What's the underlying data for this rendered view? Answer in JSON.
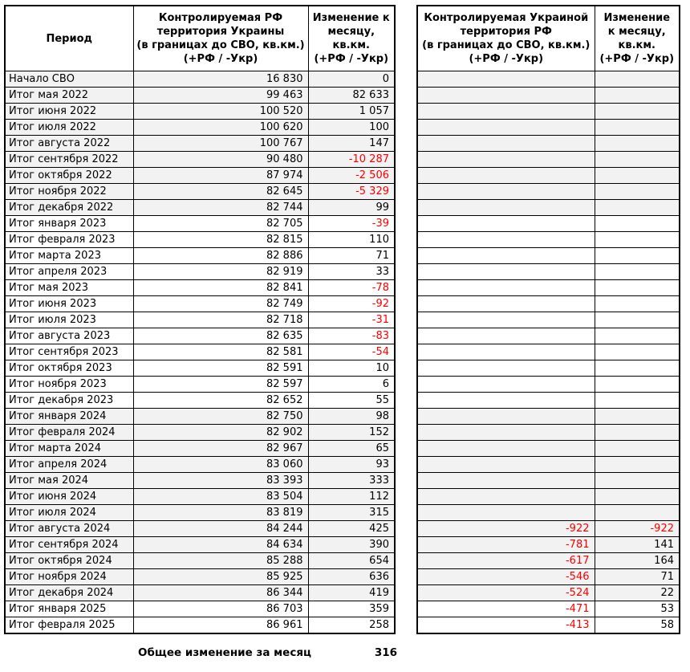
{
  "colors": {
    "negative": "#ff0000",
    "shaded_row": "#f2f2f2",
    "border": "#000000",
    "text": "#000000"
  },
  "left_table": {
    "header_period": "Период",
    "header_area": "Контролируемая РФ\nтерритория Украины\n(в границах до СВО, кв.км.)\n(+РФ / -Укр)",
    "header_change": "Изменение к\nмесяцу,\nкв.км.\n(+РФ / -Укр)"
  },
  "right_table": {
    "header_area": "Контролируемая Украиной\nтерритория РФ\n(в границах до СВО, кв.км.)\n(+РФ / -Укр)",
    "header_change": "Изменение\nк месяцу,\nкв.км.\n(+РФ / -Укр)"
  },
  "rows": [
    {
      "period": "Начало СВО",
      "rf_area": "16 830",
      "rf_change": "0",
      "ua_area": "",
      "ua_change": "",
      "shaded": true
    },
    {
      "period": "Итог мая 2022",
      "rf_area": "99 463",
      "rf_change": "82 633",
      "ua_area": "",
      "ua_change": "",
      "shaded": true
    },
    {
      "period": "Итог июня 2022",
      "rf_area": "100 520",
      "rf_change": "1 057",
      "ua_area": "",
      "ua_change": "",
      "shaded": true
    },
    {
      "period": "Итог июля 2022",
      "rf_area": "100 620",
      "rf_change": "100",
      "ua_area": "",
      "ua_change": "",
      "shaded": true
    },
    {
      "period": "Итог августа 2022",
      "rf_area": "100 767",
      "rf_change": "147",
      "ua_area": "",
      "ua_change": "",
      "shaded": true
    },
    {
      "period": "Итог сентября 2022",
      "rf_area": "90 480",
      "rf_change": "-10 287",
      "ua_area": "",
      "ua_change": "",
      "shaded": true
    },
    {
      "period": "Итог октября 2022",
      "rf_area": "87 974",
      "rf_change": "-2 506",
      "ua_area": "",
      "ua_change": "",
      "shaded": true
    },
    {
      "period": "Итог ноября 2022",
      "rf_area": "82 645",
      "rf_change": "-5 329",
      "ua_area": "",
      "ua_change": "",
      "shaded": true
    },
    {
      "period": "Итог декабря 2022",
      "rf_area": "82 744",
      "rf_change": "99",
      "ua_area": "",
      "ua_change": "",
      "shaded": true
    },
    {
      "period": "Итог января 2023",
      "rf_area": "82 705",
      "rf_change": "-39",
      "ua_area": "",
      "ua_change": "",
      "shaded": false
    },
    {
      "period": "Итог февраля 2023",
      "rf_area": "82 815",
      "rf_change": "110",
      "ua_area": "",
      "ua_change": "",
      "shaded": false
    },
    {
      "period": "Итог марта 2023",
      "rf_area": "82 886",
      "rf_change": "71",
      "ua_area": "",
      "ua_change": "",
      "shaded": false
    },
    {
      "period": "Итог апреля 2023",
      "rf_area": "82 919",
      "rf_change": "33",
      "ua_area": "",
      "ua_change": "",
      "shaded": false
    },
    {
      "period": "Итог мая 2023",
      "rf_area": "82 841",
      "rf_change": "-78",
      "ua_area": "",
      "ua_change": "",
      "shaded": false
    },
    {
      "period": "Итог июня 2023",
      "rf_area": "82 749",
      "rf_change": "-92",
      "ua_area": "",
      "ua_change": "",
      "shaded": false
    },
    {
      "period": "Итог июля 2023",
      "rf_area": "82 718",
      "rf_change": "-31",
      "ua_area": "",
      "ua_change": "",
      "shaded": false
    },
    {
      "period": "Итог августа 2023",
      "rf_area": "82 635",
      "rf_change": "-83",
      "ua_area": "",
      "ua_change": "",
      "shaded": false
    },
    {
      "period": "Итог сентября 2023",
      "rf_area": "82 581",
      "rf_change": "-54",
      "ua_area": "",
      "ua_change": "",
      "shaded": false
    },
    {
      "period": "Итог октября 2023",
      "rf_area": "82 591",
      "rf_change": "10",
      "ua_area": "",
      "ua_change": "",
      "shaded": false
    },
    {
      "period": "Итог ноября 2023",
      "rf_area": "82 597",
      "rf_change": "6",
      "ua_area": "",
      "ua_change": "",
      "shaded": false
    },
    {
      "period": "Итог декабря 2023",
      "rf_area": "82 652",
      "rf_change": "55",
      "ua_area": "",
      "ua_change": "",
      "shaded": false
    },
    {
      "period": "Итог января 2024",
      "rf_area": "82 750",
      "rf_change": "98",
      "ua_area": "",
      "ua_change": "",
      "shaded": true
    },
    {
      "period": "Итог февраля 2024",
      "rf_area": "82 902",
      "rf_change": "152",
      "ua_area": "",
      "ua_change": "",
      "shaded": true
    },
    {
      "period": "Итог марта 2024",
      "rf_area": "82 967",
      "rf_change": "65",
      "ua_area": "",
      "ua_change": "",
      "shaded": true
    },
    {
      "period": "Итог апреля 2024",
      "rf_area": "83 060",
      "rf_change": "93",
      "ua_area": "",
      "ua_change": "",
      "shaded": true
    },
    {
      "period": "Итог мая 2024",
      "rf_area": "83 393",
      "rf_change": "333",
      "ua_area": "",
      "ua_change": "",
      "shaded": true
    },
    {
      "period": "Итог июня 2024",
      "rf_area": "83 504",
      "rf_change": "112",
      "ua_area": "",
      "ua_change": "",
      "shaded": true
    },
    {
      "period": "Итог июля 2024",
      "rf_area": "83 819",
      "rf_change": "315",
      "ua_area": "",
      "ua_change": "",
      "shaded": true
    },
    {
      "period": "Итог августа 2024",
      "rf_area": "84 244",
      "rf_change": "425",
      "ua_area": "-922",
      "ua_change": "-922",
      "shaded": true
    },
    {
      "period": "Итог сентября 2024",
      "rf_area": "84 634",
      "rf_change": "390",
      "ua_area": "-781",
      "ua_change": "141",
      "shaded": true
    },
    {
      "period": "Итог октября 2024",
      "rf_area": "85 288",
      "rf_change": "654",
      "ua_area": "-617",
      "ua_change": "164",
      "shaded": true
    },
    {
      "period": "Итог ноября 2024",
      "rf_area": "85 925",
      "rf_change": "636",
      "ua_area": "-546",
      "ua_change": "71",
      "shaded": true
    },
    {
      "period": "Итог декабря 2024",
      "rf_area": "86 344",
      "rf_change": "419",
      "ua_area": "-524",
      "ua_change": "22",
      "shaded": true
    },
    {
      "period": "Итог января 2025",
      "rf_area": "86 703",
      "rf_change": "359",
      "ua_area": "-471",
      "ua_change": "53",
      "shaded": false
    },
    {
      "period": "Итог февраля 2025",
      "rf_area": "86 961",
      "rf_change": "258",
      "ua_area": "-413",
      "ua_change": "58",
      "shaded": false
    }
  ],
  "footer": {
    "label": "Общее изменение за месяц",
    "value": "316"
  },
  "chart_data": {
    "type": "table",
    "title": "",
    "columns": [
      "Период",
      "Контролируемая РФ территория Украины (в границах до СВО, кв.км.) (+РФ / -Укр)",
      "Изменение к месяцу, кв.км. (+РФ / -Укр)",
      "Контролируемая Украиной территория РФ (в границах до СВО, кв.км.) (+РФ / -Укр)",
      "Изменение к месяцу, кв.км. (+РФ / -Укр)"
    ],
    "rows_key": "rows",
    "notes": "Negative values rendered in red; year blocks 2022 and 2024 shaded light gray; footer total change per month = 316"
  }
}
